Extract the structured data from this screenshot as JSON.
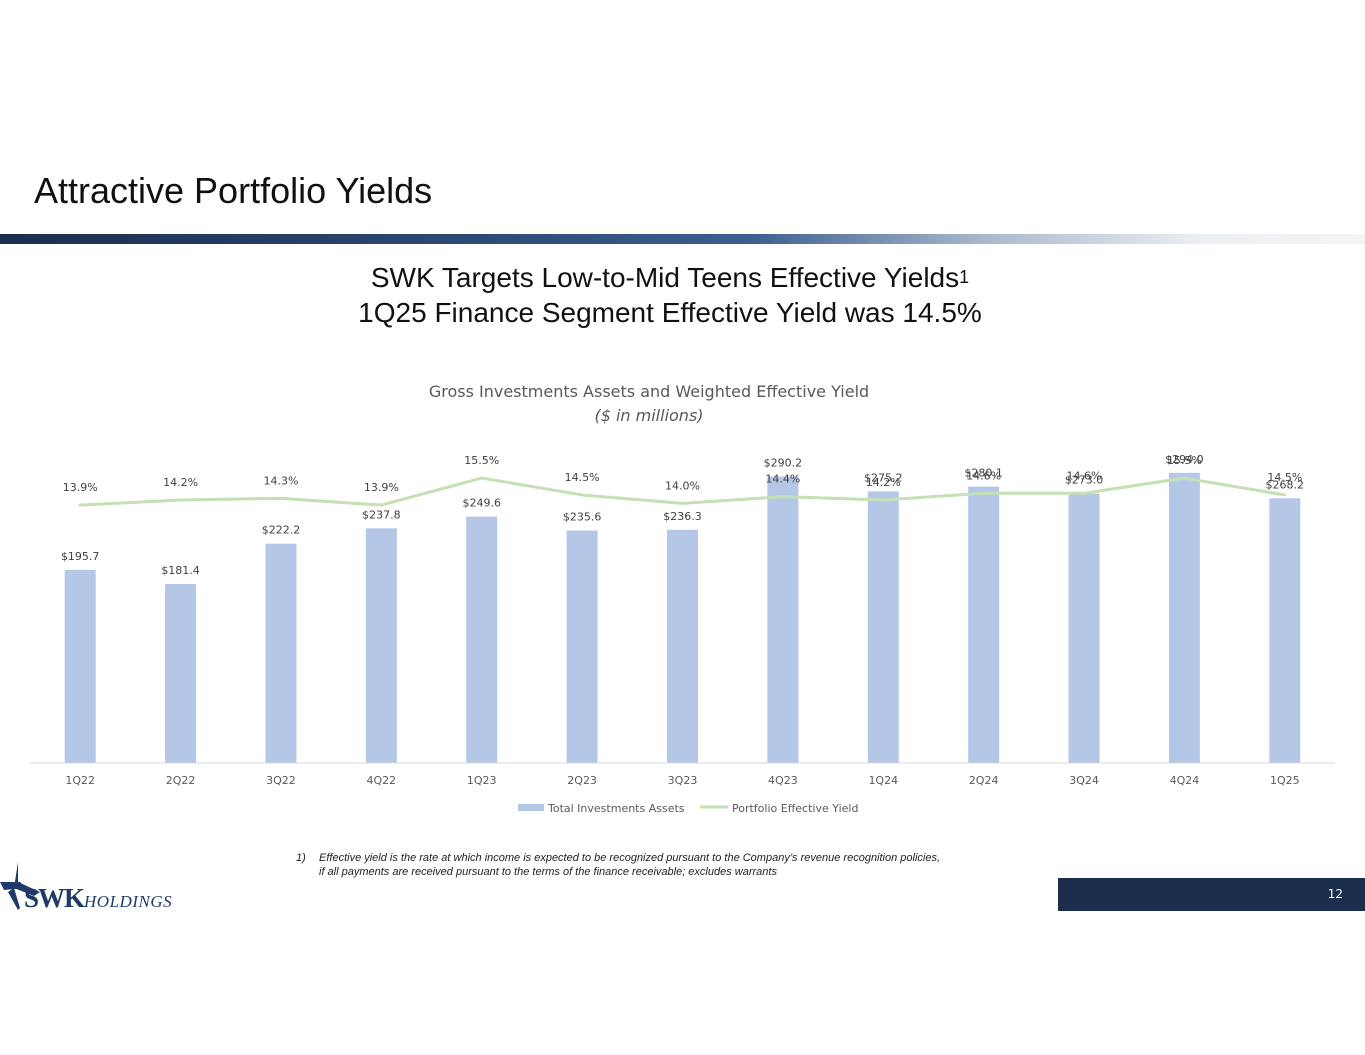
{
  "slide": {
    "title": "Attractive Portfolio Yields",
    "subtitle_line1": "SWK Targets Low-to-Mid Teens Effective Yields",
    "subtitle_sup": "1",
    "subtitle_line2": "1Q25 Finance Segment Effective Yield was 14.5%",
    "page_number": "12"
  },
  "footnote": {
    "number": "1)",
    "line1": "Effective yield is the rate at which income is expected to be recognized pursuant to the Company’s revenue recognition policies,",
    "line2": "if all payments are received pursuant to the terms of the finance receivable; excludes warrants"
  },
  "logo": {
    "primary": "SWK",
    "secondary": "HOLDINGS"
  },
  "colors": {
    "bar": "#b4c7e7",
    "line": "#c5e0b4",
    "brand_dark": "#1c2e4e",
    "logo_blue": "#1f3a68"
  },
  "chart_data": {
    "type": "bar",
    "title": "Gross Investments Assets and Weighted Effective Yield",
    "subtitle": "($ in millions)",
    "categories": [
      "1Q22",
      "2Q22",
      "3Q22",
      "4Q22",
      "1Q23",
      "2Q23",
      "3Q23",
      "4Q23",
      "1Q24",
      "2Q24",
      "3Q24",
      "4Q24",
      "1Q25"
    ],
    "series": [
      {
        "name": "Total Investments Assets",
        "kind": "bar",
        "values": [
          195.7,
          181.4,
          222.2,
          237.8,
          249.6,
          235.6,
          236.3,
          290.2,
          275.2,
          280.1,
          273.0,
          294.0,
          268.2
        ],
        "labels": [
          "$195.7",
          "$181.4",
          "$222.2",
          "$237.8",
          "$249.6",
          "$235.6",
          "$236.3",
          "$290.2",
          "$275.2",
          "$280.1",
          "$273.0",
          "$294.0",
          "$268.2"
        ]
      },
      {
        "name": "Portfolio Effective Yield",
        "kind": "line",
        "values": [
          13.9,
          14.2,
          14.3,
          13.9,
          15.5,
          14.5,
          14.0,
          14.4,
          14.2,
          14.6,
          14.6,
          15.5,
          14.5
        ],
        "labels": [
          "13.9%",
          "14.2%",
          "14.3%",
          "13.9%",
          "15.5%",
          "14.5%",
          "14.0%",
          "14.4%",
          "14.2%",
          "14.6%",
          "14.6%",
          "15.5%",
          "14.5%"
        ]
      }
    ],
    "bar_ylim": [
      0,
      300
    ],
    "line_ylim": [
      0,
      25
    ],
    "legend_position": "bottom-center",
    "grid": false
  }
}
